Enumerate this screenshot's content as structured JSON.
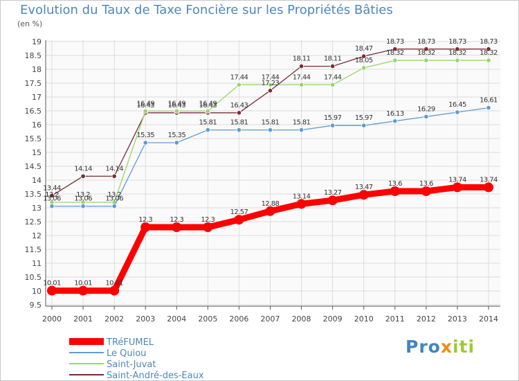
{
  "title": "Evolution du Taux de Taxe Foncière sur les Propriétés Bâties",
  "unit_label": "(en %)",
  "logo": {
    "parts": [
      "Pro",
      "x",
      "iti"
    ],
    "colors": [
      "#3f86c2",
      "#f28c0f",
      "#9fc83a"
    ]
  },
  "chart_data": {
    "type": "line",
    "title": "Evolution du Taux de Taxe Foncière sur les Propriétés Bâties",
    "ylabel": "(en %)",
    "xlabel": "",
    "ylim": [
      9.5,
      19
    ],
    "yticks": [
      "9.5",
      "10",
      "10.5",
      "11",
      "11.5",
      "12",
      "12.5",
      "13",
      "13.5",
      "14",
      "14.5",
      "15",
      "15.5",
      "16",
      "16.5",
      "17",
      "17.5",
      "18",
      "18.5",
      "19"
    ],
    "x": [
      "2000",
      "2001",
      "2002",
      "2003",
      "2004",
      "2005",
      "2006",
      "2007",
      "2008",
      "2009",
      "2010",
      "2011",
      "2012",
      "2013",
      "2014"
    ],
    "grid": true,
    "legend_position": "bottom-left",
    "series": [
      {
        "name": "Saint-André-des-Eaux",
        "color": "#7a2b35",
        "values": [
          13.44,
          14.14,
          14.14,
          16.43,
          16.43,
          16.43,
          16.43,
          17.23,
          18.11,
          18.11,
          18.47,
          18.73,
          18.73,
          18.73,
          18.73
        ],
        "labels": [
          "13.44",
          "14.14",
          "14.14",
          "16.43",
          "16.43",
          "16.43",
          "16.43",
          "17.23",
          "18.11",
          "18.11",
          "18.47",
          "18.73",
          "18.73",
          "18.73",
          "18.73"
        ]
      },
      {
        "name": "Saint-Juvat",
        "color": "#9ad56b",
        "values": [
          13.2,
          13.2,
          13.2,
          16.49,
          16.49,
          16.49,
          17.44,
          17.44,
          17.44,
          17.44,
          18.05,
          18.32,
          18.32,
          18.32,
          18.32
        ],
        "labels": [
          "13.2",
          "13.2",
          "13.2",
          "16.49",
          "16.49",
          "16.49",
          "17.44",
          "17.44",
          "17.44",
          "17.44",
          "18.05",
          "18.32",
          "18.32",
          "18.32",
          "18.32"
        ]
      },
      {
        "name": "Le Quiou",
        "color": "#5f9bd0",
        "values": [
          13.06,
          13.06,
          13.06,
          15.35,
          15.35,
          15.81,
          15.81,
          15.81,
          15.81,
          15.97,
          15.97,
          16.13,
          16.29,
          16.45,
          16.61
        ],
        "labels": [
          "13.06",
          "13.06",
          "13.06",
          "15.35",
          "15.35",
          "15.81",
          "15.81",
          "15.81",
          "15.81",
          "15.97",
          "15.97",
          "16.13",
          "16.29",
          "16.45",
          "16.61"
        ]
      },
      {
        "name": "TRéFUMEL",
        "color": "#ff0000",
        "values": [
          10.01,
          10.01,
          10.01,
          12.3,
          12.3,
          12.3,
          12.57,
          12.88,
          13.14,
          13.27,
          13.47,
          13.6,
          13.6,
          13.74,
          13.74
        ],
        "labels": [
          "10.01",
          "10.01",
          "10.01",
          "12.3",
          "12.3",
          "12.3",
          "12.57",
          "12.88",
          "13.14",
          "13.27",
          "13.47",
          "13.6",
          "13.6",
          "13.74",
          "13.74"
        ]
      }
    ],
    "legend": [
      "TRéFUMEL",
      "Le Quiou",
      "Saint-Juvat",
      "Saint-André-des-Eaux"
    ]
  }
}
